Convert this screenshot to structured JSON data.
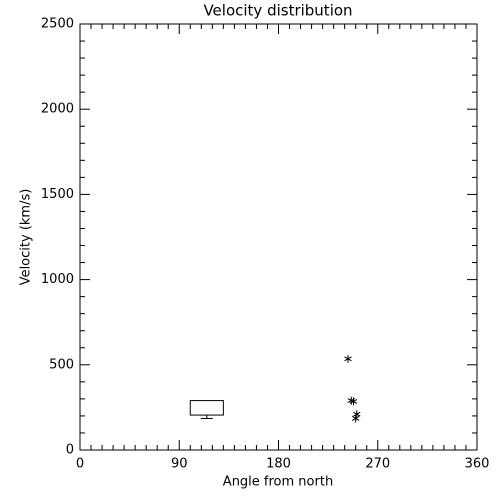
{
  "chart_data": {
    "type": "box",
    "title": "Velocity distribution",
    "x_label": "Angle from north",
    "y_label": "Velocity (km/s)",
    "xlim": [
      0,
      360
    ],
    "xticks": [
      0,
      90,
      180,
      270,
      360
    ],
    "x_minor": 9,
    "ylim": [
      0,
      2500
    ],
    "yticks": [
      0,
      500,
      1000,
      1500,
      2000,
      2500
    ],
    "y_minor": 5,
    "color": "#000000",
    "boxes": [
      {
        "x": [
          100,
          130
        ],
        "whisker_low": 185,
        "q1": 205,
        "q3": 290
      }
    ],
    "points": {
      "x": [
        243,
        246,
        248,
        251,
        250
      ],
      "y": [
        535,
        290,
        285,
        210,
        185
      ]
    }
  }
}
